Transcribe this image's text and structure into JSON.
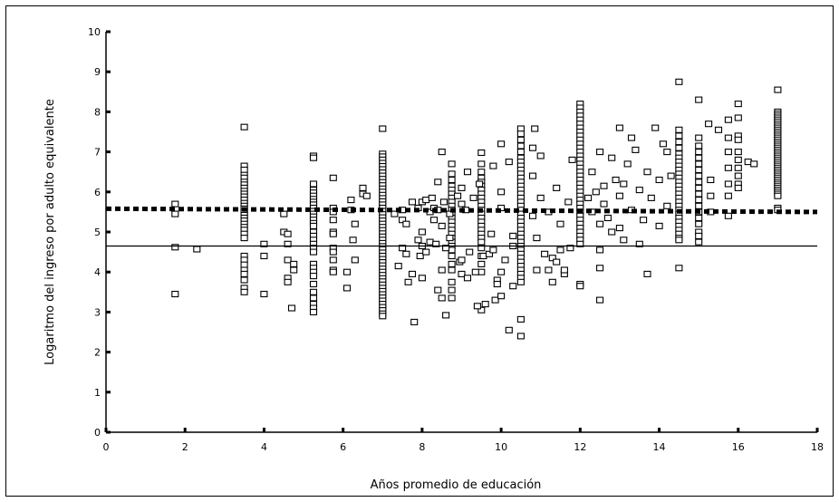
{
  "chart_data": {
    "type": "scatter",
    "title": "",
    "xlabel": "Años promedio de educación",
    "ylabel": "Logaritmo del ingreso por adulto equivalente",
    "xlim": [
      0,
      18
    ],
    "ylim": [
      0,
      10
    ],
    "x_ticks": [
      0,
      2,
      4,
      6,
      8,
      10,
      12,
      14,
      16,
      18
    ],
    "y_ticks": [
      0,
      1,
      2,
      3,
      4,
      5,
      6,
      7,
      8,
      9,
      10
    ],
    "grid": false,
    "legend": "none",
    "marker": "open-square",
    "reference_lines": [
      {
        "style": "dotted-thick",
        "y_start": 5.58,
        "y_end": 5.5
      },
      {
        "style": "solid-thin",
        "y": 4.65
      }
    ],
    "columns": [
      {
        "x": 1.75,
        "values": [
          5.7,
          5.45,
          4.62,
          3.45
        ]
      },
      {
        "x": 2.3,
        "values": [
          4.57
        ]
      },
      {
        "x": 3.5,
        "values": [
          7.62,
          6.65,
          6.55,
          6.42,
          6.35,
          6.25,
          6.18,
          6.1,
          6.02,
          5.95,
          5.88,
          5.8,
          5.72,
          5.65,
          5.58,
          5.5,
          5.42,
          5.35,
          5.28,
          5.2,
          5.12,
          5.05,
          4.95,
          4.85,
          4.4,
          4.3,
          4.18,
          4.05,
          3.95,
          3.8,
          3.6,
          3.5
        ]
      },
      {
        "x": 5.25,
        "values": [
          6.9,
          6.85,
          6.2,
          6.05,
          5.98,
          5.9,
          5.82,
          5.75,
          5.68,
          5.6,
          5.52,
          5.45,
          5.38,
          5.3,
          5.22,
          5.15,
          5.0,
          4.9,
          4.8,
          4.7,
          4.6,
          4.5,
          4.2,
          4.1,
          4.0,
          3.9,
          3.7,
          3.5,
          3.35,
          3.2,
          3.1,
          3.0
        ]
      },
      {
        "x": 7.0,
        "values": [
          7.58,
          6.95,
          6.88,
          6.8,
          6.72,
          6.64,
          6.56,
          6.48,
          6.4,
          6.32,
          6.24,
          6.16,
          6.08,
          6.0,
          5.92,
          5.84,
          5.76,
          5.68,
          5.6,
          5.52,
          5.44,
          5.36,
          5.28,
          5.2,
          5.12,
          5.04,
          4.96,
          4.88,
          4.8,
          4.72,
          4.64,
          4.56,
          4.48,
          4.4,
          4.32,
          4.24,
          4.16,
          4.08,
          4.0,
          3.92,
          3.84,
          3.76,
          3.68,
          3.6,
          3.52,
          3.44,
          3.36,
          3.28,
          3.2,
          3.12,
          3.04,
          2.96,
          2.9
        ]
      },
      {
        "x": 8.75,
        "values": [
          6.7,
          6.45,
          6.3,
          6.15,
          6.05,
          5.95,
          5.85,
          5.75,
          5.65,
          5.55,
          5.45,
          5.35,
          5.25,
          5.15,
          5.05,
          4.95,
          4.85,
          4.75,
          4.65,
          4.55,
          4.4,
          4.2,
          4.05,
          3.75,
          3.55,
          3.35
        ]
      },
      {
        "x": 9.5,
        "values": [
          6.98,
          6.7,
          6.5,
          6.35,
          6.25,
          6.15,
          6.05,
          5.95,
          5.85,
          5.75,
          5.65,
          5.55,
          5.45,
          5.35,
          5.25,
          5.15,
          5.05,
          4.95,
          4.85,
          4.75,
          4.6,
          4.4,
          4.2,
          4.0,
          3.05
        ]
      },
      {
        "x": 10.5,
        "values": [
          7.58,
          7.45,
          7.3,
          7.15,
          7.0,
          6.85,
          6.75,
          6.65,
          6.55,
          6.45,
          6.35,
          6.25,
          6.15,
          6.05,
          5.95,
          5.85,
          5.75,
          5.65,
          5.55,
          5.45,
          5.35,
          5.25,
          5.15,
          5.05,
          4.95,
          4.85,
          4.75,
          4.65,
          4.55,
          4.45,
          4.35,
          4.25,
          4.15,
          4.05,
          3.95,
          3.85,
          3.75,
          2.82,
          2.4
        ]
      },
      {
        "x": 12.0,
        "values": [
          8.2,
          8.1,
          8.0,
          7.9,
          7.8,
          7.7,
          7.6,
          7.5,
          7.4,
          7.3,
          7.2,
          7.1,
          7.0,
          6.9,
          6.8,
          6.7,
          6.6,
          6.5,
          6.4,
          6.3,
          6.2,
          6.1,
          6.0,
          5.9,
          5.8,
          5.7,
          5.6,
          5.5,
          5.4,
          5.3,
          5.2,
          5.1,
          5.0,
          4.9,
          4.8,
          4.7,
          3.7,
          3.65
        ]
      },
      {
        "x": 14.5,
        "values": [
          8.75,
          7.55,
          7.4,
          7.25,
          7.1,
          6.95,
          6.85,
          6.75,
          6.65,
          6.55,
          6.45,
          6.35,
          6.25,
          6.15,
          6.05,
          5.95,
          5.85,
          5.75,
          5.65,
          5.55,
          5.45,
          5.35,
          5.25,
          5.15,
          5.05,
          4.95,
          4.85,
          4.8,
          4.1
        ]
      },
      {
        "x": 15.0,
        "values": [
          8.3,
          7.35,
          7.15,
          7.0,
          6.85,
          6.7,
          6.55,
          6.4,
          6.25,
          6.1,
          5.95,
          5.8,
          5.65,
          5.5,
          5.35,
          5.2,
          5.0,
          4.9,
          4.75
        ]
      },
      {
        "x": 17.0,
        "values": [
          8.55,
          8.0,
          7.95,
          7.9,
          7.85,
          7.8,
          7.75,
          7.7,
          7.65,
          7.6,
          7.55,
          7.5,
          7.45,
          7.4,
          7.35,
          7.3,
          7.25,
          7.2,
          7.15,
          7.1,
          7.05,
          7.0,
          6.95,
          6.9,
          6.85,
          6.8,
          6.75,
          6.7,
          6.65,
          6.6,
          6.55,
          6.5,
          6.45,
          6.4,
          6.35,
          6.3,
          6.25,
          6.2,
          6.15,
          6.1,
          6.05,
          6.0,
          5.95,
          5.9,
          5.6,
          5.55
        ]
      }
    ],
    "points": [
      [
        4.0,
        4.7
      ],
      [
        4.0,
        4.4
      ],
      [
        4.0,
        3.45
      ],
      [
        4.5,
        5.45
      ],
      [
        4.5,
        5.0
      ],
      [
        4.6,
        4.95
      ],
      [
        4.6,
        4.7
      ],
      [
        4.6,
        4.3
      ],
      [
        4.6,
        3.85
      ],
      [
        4.6,
        3.75
      ],
      [
        4.7,
        3.1
      ],
      [
        4.75,
        4.2
      ],
      [
        4.75,
        4.05
      ],
      [
        5.75,
        6.35
      ],
      [
        5.75,
        5.6
      ],
      [
        5.75,
        5.5
      ],
      [
        5.75,
        5.3
      ],
      [
        5.75,
        5.0
      ],
      [
        5.75,
        4.95
      ],
      [
        5.75,
        4.6
      ],
      [
        5.75,
        4.5
      ],
      [
        5.75,
        4.3
      ],
      [
        5.75,
        4.05
      ],
      [
        5.75,
        4.0
      ],
      [
        6.1,
        4.0
      ],
      [
        6.1,
        3.6
      ],
      [
        6.2,
        5.8
      ],
      [
        6.2,
        5.55
      ],
      [
        6.25,
        4.8
      ],
      [
        6.3,
        5.2
      ],
      [
        6.3,
        4.3
      ],
      [
        6.5,
        6.1
      ],
      [
        6.5,
        5.95
      ],
      [
        6.6,
        5.9
      ],
      [
        7.3,
        5.45
      ],
      [
        7.4,
        4.15
      ],
      [
        7.5,
        5.55
      ],
      [
        7.5,
        5.3
      ],
      [
        7.5,
        4.6
      ],
      [
        7.6,
        5.2
      ],
      [
        7.6,
        4.45
      ],
      [
        7.65,
        3.75
      ],
      [
        7.75,
        5.75
      ],
      [
        7.75,
        3.95
      ],
      [
        7.8,
        2.75
      ],
      [
        7.9,
        5.6
      ],
      [
        7.9,
        4.8
      ],
      [
        7.95,
        4.4
      ],
      [
        8.0,
        5.75
      ],
      [
        8.0,
        5.0
      ],
      [
        8.0,
        4.65
      ],
      [
        8.0,
        3.85
      ],
      [
        8.1,
        5.8
      ],
      [
        8.1,
        4.5
      ],
      [
        8.2,
        5.5
      ],
      [
        8.2,
        4.75
      ],
      [
        8.25,
        5.85
      ],
      [
        8.3,
        5.6
      ],
      [
        8.3,
        5.3
      ],
      [
        8.35,
        4.7
      ],
      [
        8.4,
        6.25
      ],
      [
        8.4,
        5.55
      ],
      [
        8.4,
        3.55
      ],
      [
        8.5,
        7.0
      ],
      [
        8.5,
        5.15
      ],
      [
        8.5,
        4.05
      ],
      [
        8.5,
        3.35
      ],
      [
        8.55,
        5.75
      ],
      [
        8.6,
        4.6
      ],
      [
        8.6,
        2.92
      ],
      [
        8.7,
        5.45
      ],
      [
        8.7,
        4.85
      ],
      [
        8.9,
        5.9
      ],
      [
        8.95,
        4.25
      ],
      [
        9.0,
        6.1
      ],
      [
        9.0,
        5.7
      ],
      [
        9.0,
        4.3
      ],
      [
        9.0,
        3.95
      ],
      [
        9.1,
        5.55
      ],
      [
        9.15,
        6.5
      ],
      [
        9.15,
        3.85
      ],
      [
        9.2,
        4.5
      ],
      [
        9.3,
        5.85
      ],
      [
        9.35,
        4.0
      ],
      [
        9.4,
        3.15
      ],
      [
        9.45,
        6.2
      ],
      [
        9.55,
        4.4
      ],
      [
        9.6,
        3.2
      ],
      [
        9.7,
        4.45
      ],
      [
        9.75,
        4.95
      ],
      [
        9.8,
        6.65
      ],
      [
        9.8,
        4.55
      ],
      [
        9.85,
        3.3
      ],
      [
        9.9,
        3.8
      ],
      [
        9.9,
        3.7
      ],
      [
        10.0,
        7.2
      ],
      [
        10.0,
        6.0
      ],
      [
        10.0,
        5.6
      ],
      [
        10.0,
        4.0
      ],
      [
        10.0,
        3.4
      ],
      [
        10.1,
        4.3
      ],
      [
        10.2,
        6.75
      ],
      [
        10.2,
        2.55
      ],
      [
        10.3,
        4.9
      ],
      [
        10.3,
        4.65
      ],
      [
        10.3,
        3.65
      ],
      [
        10.8,
        7.1
      ],
      [
        10.8,
        6.4
      ],
      [
        10.8,
        5.4
      ],
      [
        10.85,
        7.58
      ],
      [
        10.9,
        4.85
      ],
      [
        10.9,
        4.05
      ],
      [
        11.0,
        6.9
      ],
      [
        11.0,
        5.85
      ],
      [
        11.1,
        4.45
      ],
      [
        11.2,
        5.5
      ],
      [
        11.2,
        4.05
      ],
      [
        11.3,
        4.35
      ],
      [
        11.3,
        3.75
      ],
      [
        11.4,
        6.1
      ],
      [
        11.4,
        4.25
      ],
      [
        11.5,
        5.2
      ],
      [
        11.5,
        4.55
      ],
      [
        11.6,
        3.95
      ],
      [
        11.6,
        4.05
      ],
      [
        11.7,
        5.75
      ],
      [
        11.75,
        4.6
      ],
      [
        11.8,
        6.8
      ],
      [
        12.2,
        5.85
      ],
      [
        12.3,
        6.5
      ],
      [
        12.3,
        5.5
      ],
      [
        12.4,
        6.0
      ],
      [
        12.5,
        7.0
      ],
      [
        12.5,
        5.2
      ],
      [
        12.5,
        4.1
      ],
      [
        12.5,
        3.3
      ],
      [
        12.5,
        4.55
      ],
      [
        12.6,
        6.15
      ],
      [
        12.6,
        5.7
      ],
      [
        12.7,
        5.35
      ],
      [
        12.8,
        6.85
      ],
      [
        12.8,
        5.0
      ],
      [
        12.9,
        6.3
      ],
      [
        13.0,
        5.9
      ],
      [
        13.0,
        5.1
      ],
      [
        13.0,
        7.6
      ],
      [
        13.1,
        6.2
      ],
      [
        13.1,
        4.8
      ],
      [
        13.2,
        6.7
      ],
      [
        13.3,
        7.35
      ],
      [
        13.3,
        5.55
      ],
      [
        13.4,
        7.05
      ],
      [
        13.5,
        6.05
      ],
      [
        13.5,
        4.7
      ],
      [
        13.6,
        5.3
      ],
      [
        13.7,
        6.5
      ],
      [
        13.7,
        3.95
      ],
      [
        13.8,
        5.85
      ],
      [
        13.9,
        7.6
      ],
      [
        14.0,
        6.3
      ],
      [
        14.0,
        5.15
      ],
      [
        14.1,
        7.2
      ],
      [
        14.2,
        7.0
      ],
      [
        14.2,
        5.65
      ],
      [
        14.3,
        6.4
      ],
      [
        15.25,
        7.7
      ],
      [
        15.3,
        6.3
      ],
      [
        15.3,
        5.9
      ],
      [
        15.3,
        5.5
      ],
      [
        15.5,
        7.55
      ],
      [
        15.75,
        7.8
      ],
      [
        15.75,
        7.35
      ],
      [
        15.75,
        7.0
      ],
      [
        15.75,
        6.6
      ],
      [
        15.75,
        6.2
      ],
      [
        15.75,
        5.9
      ],
      [
        15.75,
        5.4
      ],
      [
        16.0,
        8.2
      ],
      [
        16.0,
        7.85
      ],
      [
        16.0,
        7.4
      ],
      [
        16.0,
        7.3
      ],
      [
        16.0,
        7.0
      ],
      [
        16.0,
        6.8
      ],
      [
        16.0,
        6.6
      ],
      [
        16.0,
        6.4
      ],
      [
        16.0,
        6.2
      ],
      [
        16.0,
        6.1
      ],
      [
        16.25,
        6.75
      ],
      [
        16.4,
        6.7
      ]
    ]
  }
}
